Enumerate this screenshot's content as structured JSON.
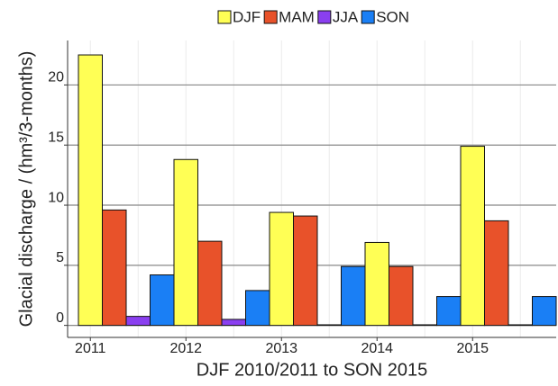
{
  "chart_data": {
    "type": "bar",
    "x_label": "DJF 2010/2011 to SON 2015",
    "y_label": "Glacial discharge / (hm³/3-months)",
    "categories": [
      "2011",
      "2012",
      "2013",
      "2014",
      "2015"
    ],
    "series": [
      {
        "name": "DJF",
        "color": "#ffff55",
        "values": [
          22.5,
          13.8,
          9.4,
          6.9,
          14.9
        ]
      },
      {
        "name": "MAM",
        "color": "#e8522a",
        "values": [
          9.6,
          7.0,
          9.1,
          4.9,
          8.7
        ]
      },
      {
        "name": "JJA",
        "color": "#8a3ff0",
        "values": [
          0.75,
          0.5,
          0.05,
          0.05,
          0.05
        ]
      },
      {
        "name": "SON",
        "color": "#1a7ff5",
        "values": [
          4.2,
          2.9,
          4.9,
          2.4,
          2.4
        ]
      }
    ],
    "ylim": [
      -1,
      23.7
    ],
    "yticks": [
      0,
      5,
      10,
      15,
      20
    ],
    "grid": true,
    "legend": "top"
  }
}
